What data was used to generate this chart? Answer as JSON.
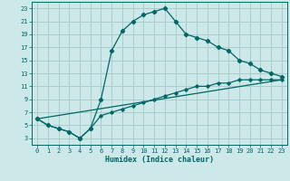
{
  "xlabel": "Humidex (Indice chaleur)",
  "bg_color": "#cce8e8",
  "line_color": "#006666",
  "grid_color": "#aacccc",
  "xlim": [
    -0.5,
    23.5
  ],
  "ylim": [
    2.0,
    24.0
  ],
  "xticks": [
    0,
    1,
    2,
    3,
    4,
    5,
    6,
    7,
    8,
    9,
    10,
    11,
    12,
    13,
    14,
    15,
    16,
    17,
    18,
    19,
    20,
    21,
    22,
    23
  ],
  "yticks": [
    3,
    5,
    7,
    9,
    11,
    13,
    15,
    17,
    19,
    21,
    23
  ],
  "curve1_x": [
    0,
    1,
    2,
    3,
    4,
    5,
    6,
    7,
    8,
    9,
    10,
    11,
    12,
    13,
    14,
    15,
    16,
    17,
    18,
    19,
    20,
    21,
    22,
    23
  ],
  "curve1_y": [
    6,
    5,
    4.5,
    4,
    3,
    4.5,
    9,
    16.5,
    19.5,
    21,
    22,
    22.5,
    23,
    21,
    19,
    18.5,
    18,
    17,
    16.5,
    15,
    14.5,
    13.5,
    13,
    12.5
  ],
  "curve2_x": [
    0,
    1,
    2,
    3,
    4,
    5,
    6,
    7,
    8,
    9,
    10,
    11,
    12,
    13,
    14,
    15,
    16,
    17,
    18,
    19,
    20,
    21,
    22,
    23
  ],
  "curve2_y": [
    6,
    5,
    4.5,
    4,
    3,
    4.5,
    6.5,
    7,
    7.5,
    8,
    8.5,
    9,
    9.5,
    10,
    10.5,
    11,
    11,
    11.5,
    11.5,
    12,
    12,
    12,
    12,
    12
  ],
  "curve3_x": [
    0,
    23
  ],
  "curve3_y": [
    6,
    12
  ]
}
